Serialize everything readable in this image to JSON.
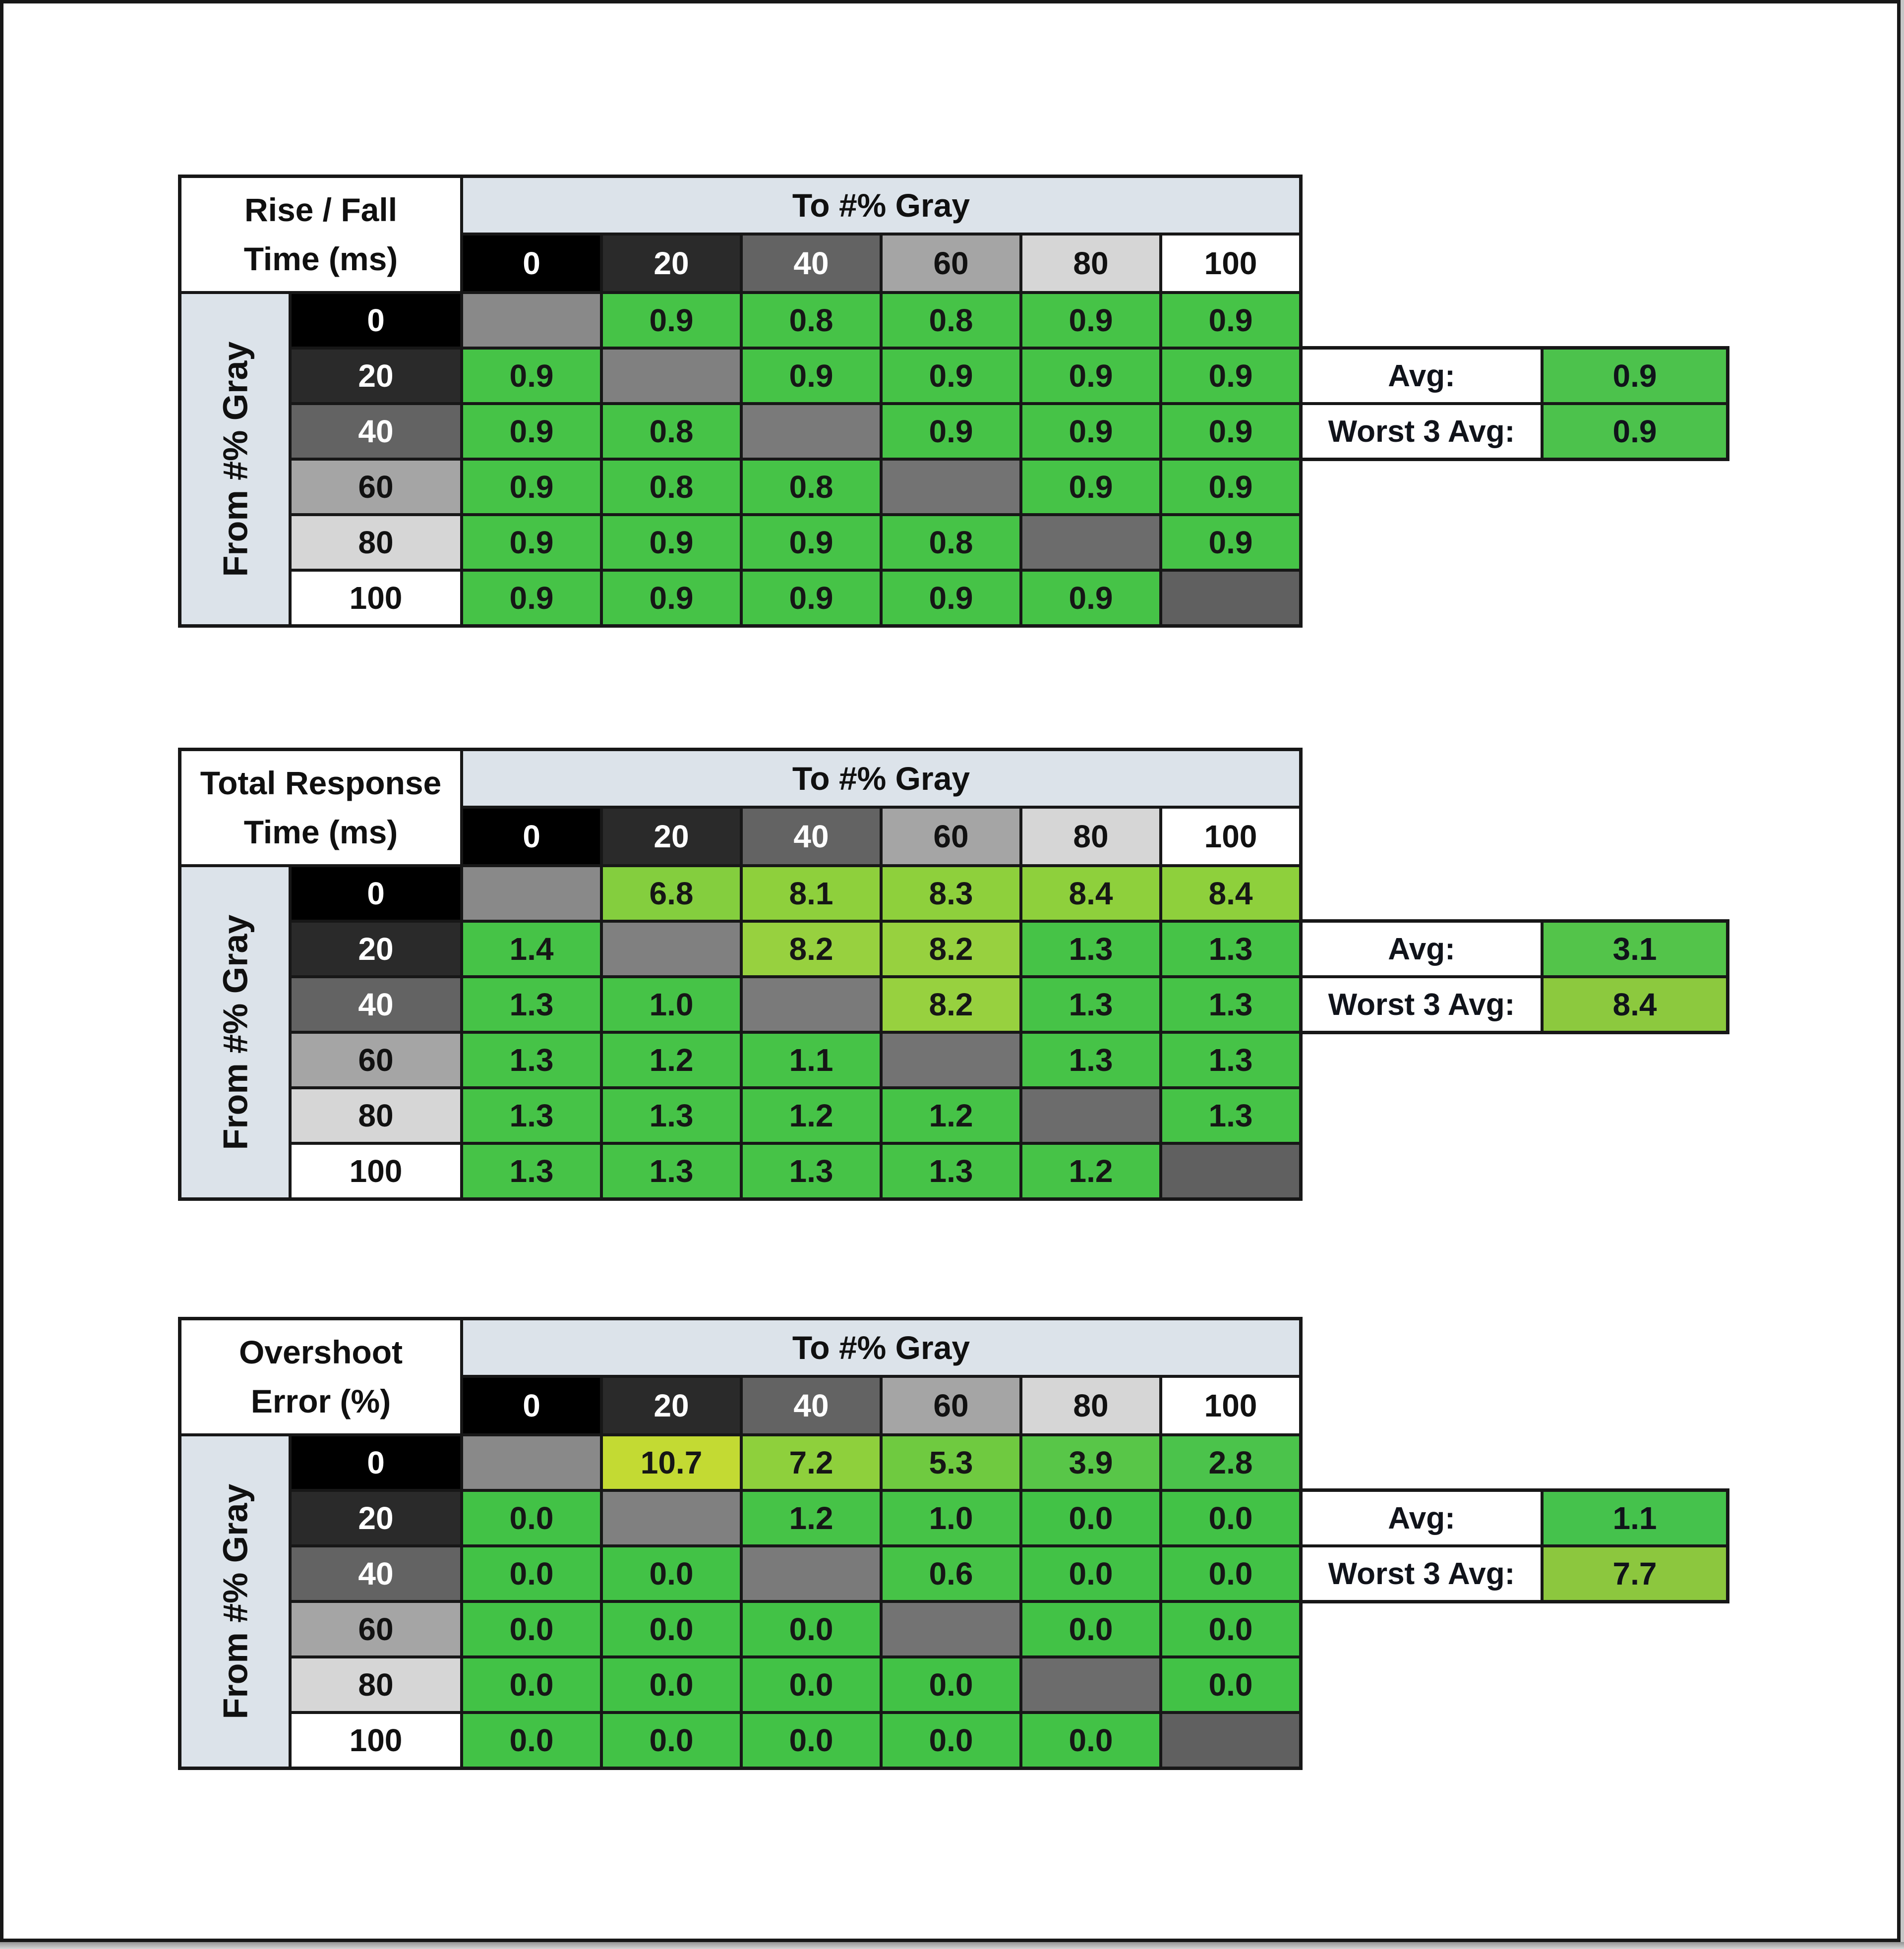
{
  "frame": {
    "paper_bg": "#ffffff",
    "border_color": "#171717",
    "edge_strip_top": "#949494",
    "edge_strip_bottom": "#d6d6d6"
  },
  "shared": {
    "to_axis_label": "To #% Gray",
    "from_axis_label": "From #% Gray",
    "gray_levels": [
      "0",
      "20",
      "40",
      "60",
      "80",
      "100"
    ],
    "level_header_styles": [
      {
        "bg": "#000000",
        "fg": "#ffffff"
      },
      {
        "bg": "#2a2a2a",
        "fg": "#ffffff"
      },
      {
        "bg": "#636363",
        "fg": "#ffffff"
      },
      {
        "bg": "#a5a5a5",
        "fg": "#111111"
      },
      {
        "bg": "#d6d6d6",
        "fg": "#111111"
      },
      {
        "bg": "#ffffff",
        "fg": "#111111"
      }
    ],
    "diagonal_colors": [
      "#898989",
      "#808080",
      "#7a7a7a",
      "#737373",
      "#6c6c6c",
      "#606060"
    ],
    "header_band_bg": "#dce3ea",
    "avg_label": "Avg:",
    "worst3_label": "Worst 3 Avg:"
  },
  "chart_data": [
    {
      "type": "heatmap",
      "name": "rise-fall-time",
      "title_lines": [
        "Rise / Fall",
        "Time (ms)"
      ],
      "xlabel": "To #% Gray",
      "ylabel": "From #% Gray",
      "x_ticks": [
        0,
        20,
        40,
        60,
        80,
        100
      ],
      "y_ticks": [
        0,
        20,
        40,
        60,
        80,
        100
      ],
      "values": [
        [
          null,
          0.9,
          0.8,
          0.8,
          0.9,
          0.9
        ],
        [
          0.9,
          null,
          0.9,
          0.9,
          0.9,
          0.9
        ],
        [
          0.9,
          0.8,
          null,
          0.9,
          0.9,
          0.9
        ],
        [
          0.9,
          0.8,
          0.8,
          null,
          0.9,
          0.9
        ],
        [
          0.9,
          0.9,
          0.9,
          0.8,
          null,
          0.9
        ],
        [
          0.9,
          0.9,
          0.9,
          0.9,
          0.9,
          null
        ]
      ],
      "cell_colors": [
        [
          null,
          "#46c347",
          "#46c347",
          "#46c347",
          "#46c347",
          "#46c347"
        ],
        [
          "#46c347",
          null,
          "#46c347",
          "#46c347",
          "#46c347",
          "#46c347"
        ],
        [
          "#46c347",
          "#46c347",
          null,
          "#46c347",
          "#46c347",
          "#46c347"
        ],
        [
          "#46c347",
          "#46c347",
          "#46c347",
          null,
          "#46c347",
          "#46c347"
        ],
        [
          "#46c347",
          "#46c347",
          "#46c347",
          "#46c347",
          null,
          "#46c347"
        ],
        [
          "#46c347",
          "#46c347",
          "#46c347",
          "#46c347",
          "#46c347",
          null
        ]
      ],
      "avg": {
        "value": 0.9,
        "bg": "#4cc24c"
      },
      "worst3": {
        "value": 0.9,
        "bg": "#4cc24c"
      }
    },
    {
      "type": "heatmap",
      "name": "total-response-time",
      "title_lines": [
        "Total Response",
        "Time (ms)"
      ],
      "xlabel": "To #% Gray",
      "ylabel": "From #% Gray",
      "x_ticks": [
        0,
        20,
        40,
        60,
        80,
        100
      ],
      "y_ticks": [
        0,
        20,
        40,
        60,
        80,
        100
      ],
      "values": [
        [
          null,
          6.8,
          8.1,
          8.3,
          8.4,
          8.4
        ],
        [
          1.4,
          null,
          8.2,
          8.2,
          1.3,
          1.3
        ],
        [
          1.3,
          1.0,
          null,
          8.2,
          1.3,
          1.3
        ],
        [
          1.3,
          1.2,
          1.1,
          null,
          1.3,
          1.3
        ],
        [
          1.3,
          1.3,
          1.2,
          1.2,
          null,
          1.3
        ],
        [
          1.3,
          1.3,
          1.3,
          1.3,
          1.2,
          null
        ]
      ],
      "cell_colors": [
        [
          null,
          "#84ce3e",
          "#8ed03c",
          "#8ed03c",
          "#8ed03c",
          "#8ed03c"
        ],
        [
          "#46c347",
          null,
          "#97d13f",
          "#97d13f",
          "#46c347",
          "#46c347"
        ],
        [
          "#46c347",
          "#46c347",
          null,
          "#97d13f",
          "#46c347",
          "#46c347"
        ],
        [
          "#46c347",
          "#46c347",
          "#46c347",
          null,
          "#46c347",
          "#46c347"
        ],
        [
          "#46c347",
          "#46c347",
          "#46c347",
          "#46c347",
          null,
          "#46c347"
        ],
        [
          "#46c347",
          "#46c347",
          "#46c347",
          "#46c347",
          "#46c347",
          null
        ]
      ],
      "avg": {
        "value": 3.1,
        "bg": "#53c44a"
      },
      "worst3": {
        "value": 8.4,
        "bg": "#8cc93e"
      }
    },
    {
      "type": "heatmap",
      "name": "overshoot-error",
      "title_lines": [
        "Overshoot",
        "Error (%)"
      ],
      "xlabel": "To #% Gray",
      "ylabel": "From #% Gray",
      "x_ticks": [
        0,
        20,
        40,
        60,
        80,
        100
      ],
      "y_ticks": [
        0,
        20,
        40,
        60,
        80,
        100
      ],
      "values": [
        [
          null,
          10.7,
          7.2,
          5.3,
          3.9,
          2.8
        ],
        [
          0.0,
          null,
          1.2,
          1.0,
          0.0,
          0.0
        ],
        [
          0.0,
          0.0,
          null,
          0.6,
          0.0,
          0.0
        ],
        [
          0.0,
          0.0,
          0.0,
          null,
          0.0,
          0.0
        ],
        [
          0.0,
          0.0,
          0.0,
          0.0,
          null,
          0.0
        ],
        [
          0.0,
          0.0,
          0.0,
          0.0,
          0.0,
          null
        ]
      ],
      "cell_colors": [
        [
          null,
          "#c3da33",
          "#8ed03c",
          "#6fca40",
          "#58c648",
          "#4bc34b"
        ],
        [
          "#42c246",
          null,
          "#46c347",
          "#46c347",
          "#42c246",
          "#42c246"
        ],
        [
          "#42c246",
          "#42c246",
          null,
          "#46c347",
          "#42c246",
          "#42c246"
        ],
        [
          "#42c246",
          "#42c246",
          "#42c246",
          null,
          "#42c246",
          "#42c246"
        ],
        [
          "#42c246",
          "#42c246",
          "#42c246",
          "#42c246",
          null,
          "#42c246"
        ],
        [
          "#42c246",
          "#42c246",
          "#42c246",
          "#42c246",
          "#42c246",
          null
        ]
      ],
      "avg": {
        "value": 1.1,
        "bg": "#45c24c"
      },
      "worst3": {
        "value": 7.7,
        "bg": "#8cc73e"
      }
    }
  ]
}
